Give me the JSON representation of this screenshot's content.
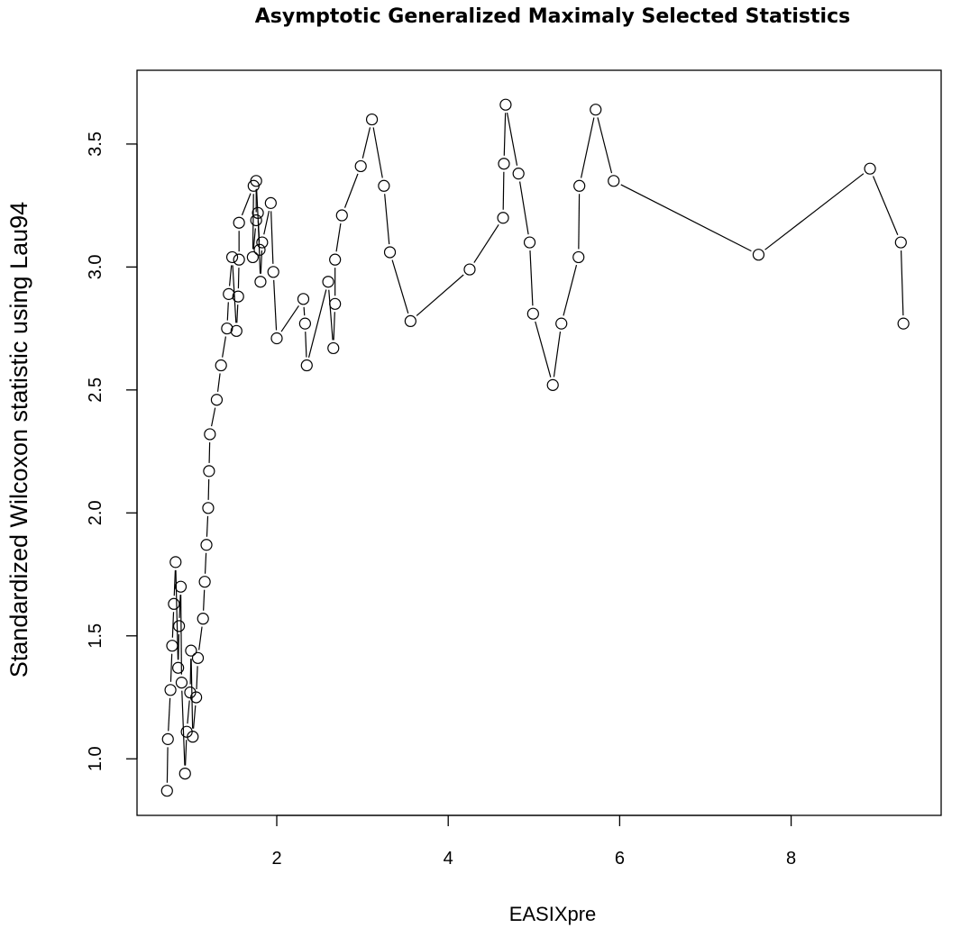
{
  "chart_data": {
    "type": "line",
    "title": "Asymptotic Generalized Maximaly Selected Statistics",
    "xlabel": "EASIXpre",
    "ylabel": "Standardized Wilcoxon statistic using Lau94",
    "xlim": [
      0.37,
      9.75
    ],
    "ylim": [
      0.77,
      3.8
    ],
    "xticks": [
      2,
      4,
      6,
      8
    ],
    "xtick_labels": [
      "2",
      "4",
      "6",
      "8"
    ],
    "yticks": [
      1.0,
      1.5,
      2.0,
      2.5,
      3.0,
      3.5
    ],
    "ytick_labels": [
      "1.0",
      "1.5",
      "2.0",
      "2.5",
      "3.0",
      "3.5"
    ],
    "grid": false,
    "legend": "none",
    "line_style": "solid, gaps around markers",
    "marker": "open circle",
    "color": "#000000",
    "series": [
      {
        "x": [
          0.72,
          0.73,
          0.76,
          0.78,
          0.8,
          0.82,
          0.85,
          0.86,
          0.88,
          0.89,
          0.93,
          0.95,
          0.99,
          1.0,
          1.02,
          1.06,
          1.08,
          1.14,
          1.16,
          1.18,
          1.2,
          1.21,
          1.22,
          1.3,
          1.35,
          1.42,
          1.44,
          1.48,
          1.53,
          1.55,
          1.56,
          1.56,
          1.73,
          1.72,
          1.76,
          1.76,
          1.8,
          1.78,
          1.81,
          1.83,
          1.93,
          1.96,
          2.0,
          2.31,
          2.33,
          2.35,
          2.6,
          2.66,
          2.68,
          2.68,
          2.76,
          2.98,
          3.11,
          3.25,
          3.32,
          3.56,
          4.25,
          4.64,
          4.65,
          4.67,
          4.82,
          4.95,
          4.99,
          5.22,
          5.32,
          5.52,
          5.53,
          5.72,
          5.93,
          7.62,
          8.92,
          9.28,
          9.31
        ],
        "y": [
          0.87,
          1.08,
          1.28,
          1.46,
          1.63,
          1.8,
          1.37,
          1.54,
          1.7,
          1.31,
          0.94,
          1.11,
          1.27,
          1.44,
          1.09,
          1.25,
          1.41,
          1.57,
          1.72,
          1.87,
          2.02,
          2.17,
          2.32,
          2.46,
          2.6,
          2.75,
          2.89,
          3.04,
          2.74,
          2.88,
          3.03,
          3.18,
          3.33,
          3.04,
          3.19,
          3.35,
          3.07,
          3.22,
          2.94,
          3.1,
          3.26,
          2.98,
          2.71,
          2.87,
          2.77,
          2.6,
          2.94,
          2.67,
          2.85,
          3.03,
          3.21,
          3.41,
          3.6,
          3.33,
          3.06,
          2.78,
          2.99,
          3.2,
          3.42,
          3.66,
          3.38,
          3.1,
          2.81,
          2.52,
          2.77,
          3.04,
          3.33,
          3.64,
          3.35,
          3.05,
          3.4,
          3.1,
          2.77
        ]
      }
    ]
  }
}
